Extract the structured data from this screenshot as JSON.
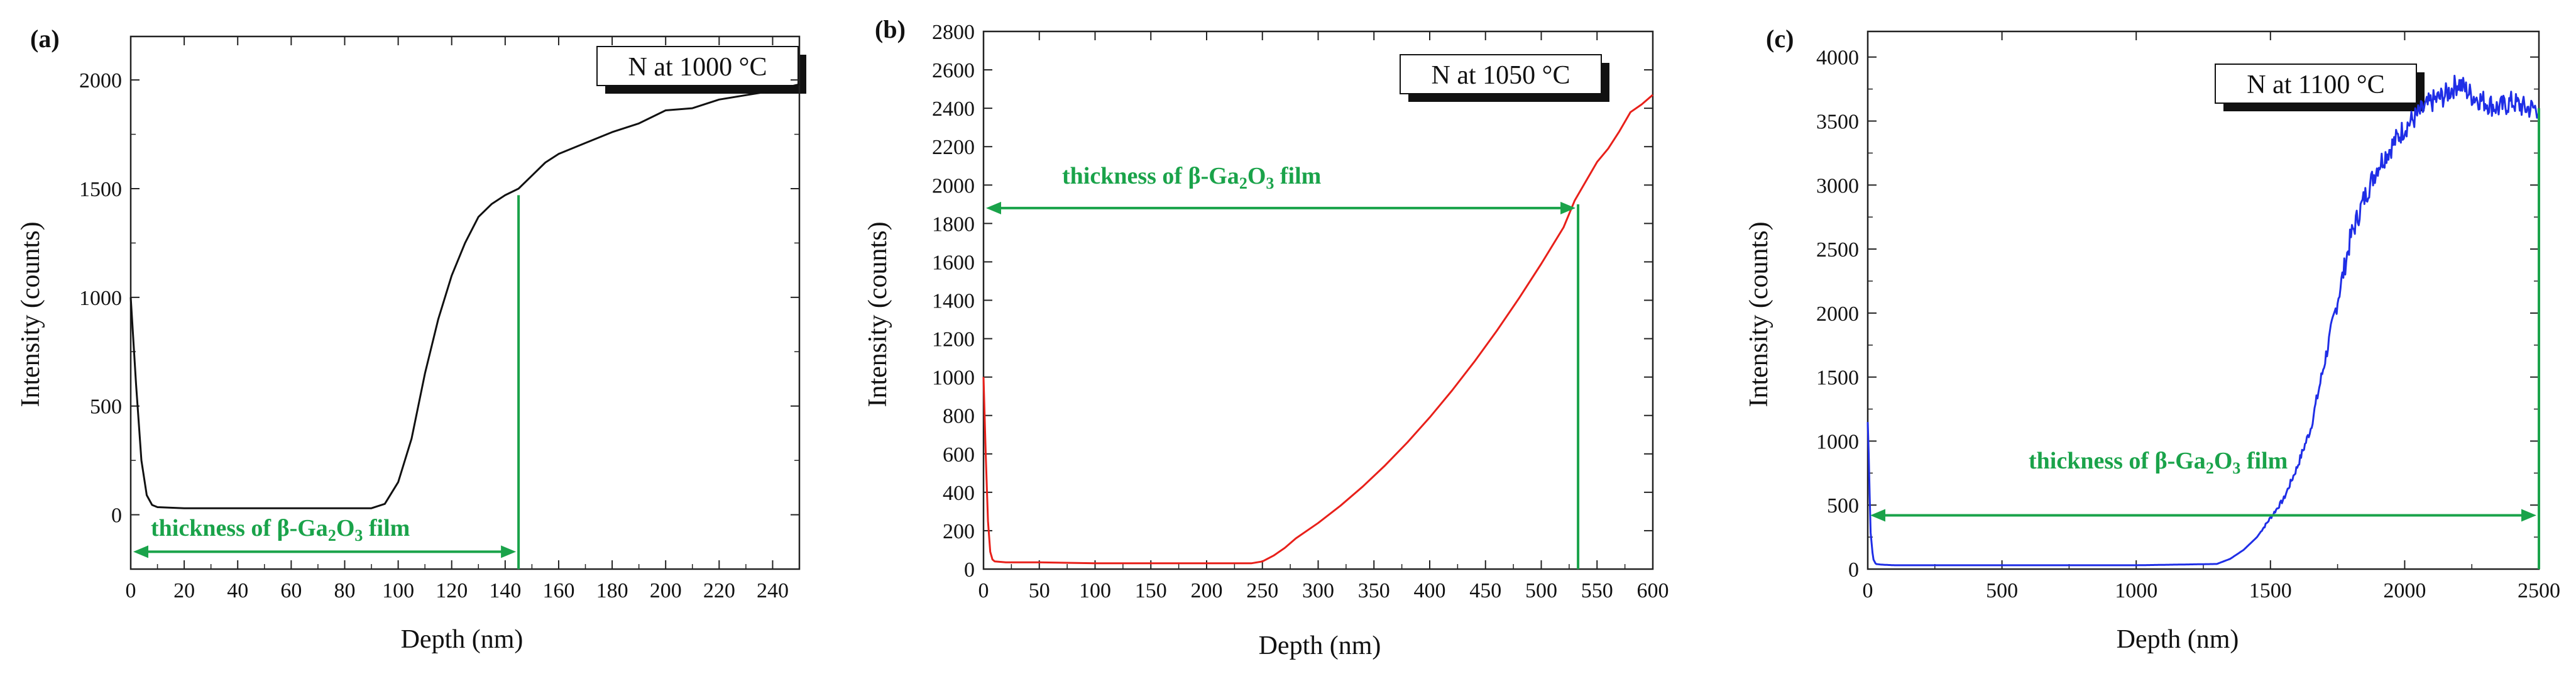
{
  "figure": {
    "panels": [
      {
        "tag": "(a)",
        "legend": "N at 1000 °C",
        "xlabel": "Depth  (nm)",
        "ylabel": "Intensity  (counts)",
        "annotation": {
          "prefix": "thickness of  β-Ga",
          "sub1": "2",
          "mid": "O",
          "sub2": "3",
          "suffix": " film"
        }
      },
      {
        "tag": "(b)",
        "legend": "N at 1050 °C",
        "xlabel": "Depth  (nm)",
        "ylabel": "Intensity  (counts)",
        "annotation": {
          "prefix": "thickness of  β-Ga",
          "sub1": "2",
          "mid": "O",
          "sub2": "3",
          "suffix": " film"
        }
      },
      {
        "tag": "(c)",
        "legend": "N at 1100 °C",
        "xlabel": "Depth  (nm)",
        "ylabel": "Intensity  (counts)",
        "annotation": {
          "prefix": "thickness of  β-Ga",
          "sub1": "2",
          "mid": "O",
          "sub2": "3",
          "suffix": "   film"
        }
      }
    ]
  },
  "chart_data": [
    {
      "type": "line",
      "title": "N at 1000 °C",
      "xlabel": "Depth  (nm)",
      "ylabel": "Intensity  (counts)",
      "xlim": [
        0,
        250
      ],
      "ylim": [
        -250,
        2200
      ],
      "xticks": [
        0,
        20,
        40,
        60,
        80,
        100,
        120,
        140,
        160,
        180,
        200,
        220,
        240
      ],
      "yticks": [
        0,
        500,
        1000,
        1500,
        2000
      ],
      "color": "#111111",
      "noise": 0,
      "series": [
        {
          "name": "N",
          "x": [
            0,
            2,
            4,
            6,
            8,
            10,
            20,
            40,
            60,
            80,
            90,
            95,
            100,
            105,
            110,
            115,
            120,
            125,
            130,
            135,
            140,
            145,
            150,
            155,
            160,
            170,
            180,
            190,
            200,
            210,
            220,
            230,
            240,
            250
          ],
          "y": [
            1000,
            600,
            250,
            90,
            45,
            35,
            30,
            30,
            30,
            30,
            30,
            50,
            150,
            350,
            650,
            900,
            1100,
            1250,
            1370,
            1430,
            1470,
            1500,
            1560,
            1620,
            1660,
            1710,
            1760,
            1800,
            1860,
            1870,
            1910,
            1930,
            1950,
            1980
          ]
        }
      ],
      "thickness_marker": {
        "depth": 145,
        "intensity": 1470,
        "arrow_y": -170,
        "arrow_from": 0
      },
      "thickness_label": "thickness of  β-Ga2O3 film"
    },
    {
      "type": "line",
      "title": "N at 1050 °C",
      "xlabel": "Depth  (nm)",
      "ylabel": "Intensity  (counts)",
      "xlim": [
        0,
        600
      ],
      "ylim": [
        0,
        2800
      ],
      "xticks": [
        0,
        50,
        100,
        150,
        200,
        250,
        300,
        350,
        400,
        450,
        500,
        550,
        600
      ],
      "yticks": [
        0,
        200,
        400,
        600,
        800,
        1000,
        1200,
        1400,
        1600,
        1800,
        2000,
        2200,
        2400,
        2600,
        2800
      ],
      "color": "#e8201a",
      "noise": 0,
      "series": [
        {
          "name": "N",
          "x": [
            0,
            2,
            4,
            6,
            8,
            10,
            20,
            50,
            100,
            150,
            200,
            240,
            250,
            260,
            270,
            280,
            300,
            320,
            340,
            360,
            380,
            400,
            420,
            440,
            460,
            480,
            500,
            520,
            530,
            540,
            550,
            560,
            570,
            580,
            590,
            600
          ],
          "y": [
            1000,
            600,
            250,
            90,
            50,
            40,
            35,
            35,
            30,
            30,
            30,
            30,
            40,
            70,
            110,
            160,
            240,
            330,
            430,
            540,
            660,
            790,
            930,
            1080,
            1240,
            1410,
            1590,
            1780,
            1920,
            2020,
            2120,
            2190,
            2280,
            2380,
            2420,
            2470
          ]
        }
      ],
      "thickness_marker": {
        "depth": 533,
        "intensity": 1900,
        "arrow_y": 1880,
        "arrow_from": 0
      },
      "thickness_label": "thickness of  β-Ga2O3 film"
    },
    {
      "type": "line",
      "title": "N at 1100 °C",
      "xlabel": "Depth  (nm)",
      "ylabel": "Intensity  (counts)",
      "xlim": [
        0,
        2500
      ],
      "ylim": [
        0,
        4200
      ],
      "xticks": [
        0,
        500,
        1000,
        1500,
        2000,
        2500
      ],
      "yticks": [
        0,
        500,
        1000,
        1500,
        2000,
        2500,
        3000,
        3500,
        4000
      ],
      "color": "#1f2ee6",
      "noise": 90,
      "series": [
        {
          "name": "N",
          "x": [
            0,
            5,
            10,
            20,
            30,
            50,
            100,
            500,
            1000,
            1300,
            1350,
            1400,
            1450,
            1500,
            1550,
            1600,
            1650,
            1700,
            1750,
            1800,
            1850,
            1900,
            1950,
            2000,
            2050,
            2100,
            2150,
            2200,
            2250,
            2300,
            2350,
            2400,
            2450,
            2500
          ],
          "y": [
            1150,
            800,
            300,
            80,
            40,
            35,
            30,
            30,
            30,
            40,
            80,
            150,
            250,
            400,
            550,
            800,
            1100,
            1600,
            2100,
            2600,
            2900,
            3150,
            3300,
            3450,
            3550,
            3650,
            3700,
            3800,
            3700,
            3650,
            3600,
            3650,
            3600,
            3600
          ]
        }
      ],
      "thickness_marker": {
        "depth": 2500,
        "intensity": 3600,
        "arrow_y": 420,
        "arrow_from": 0
      },
      "thickness_label": "thickness of  β-Ga2O3   film"
    }
  ]
}
